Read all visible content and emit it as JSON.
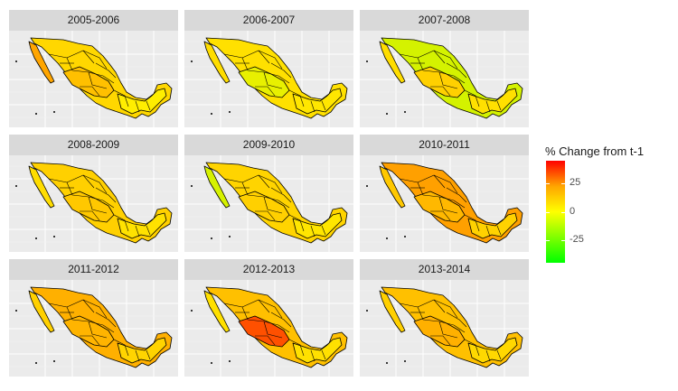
{
  "legend": {
    "title": "% Change from t-1",
    "ticks": [
      {
        "label": "25",
        "value": 25
      },
      {
        "label": "0",
        "value": 0
      },
      {
        "label": "-25",
        "value": -25
      }
    ],
    "range": [
      -45,
      45
    ],
    "colors": {
      "high": "#ff0000",
      "mid": "#ffff00",
      "low": "#00ff00"
    }
  },
  "panels": [
    {
      "label": "2005-2006",
      "fills": {
        "north": "#ffd700",
        "baja": "#ffa500",
        "center": "#ffc000",
        "south": "#ffee00"
      }
    },
    {
      "label": "2006-2007",
      "fills": {
        "north": "#ffe000",
        "baja": "#ffdd00",
        "center": "#e8f000",
        "south": "#ffe600"
      }
    },
    {
      "label": "2007-2008",
      "fills": {
        "north": "#d4f200",
        "baja": "#ffdd00",
        "center": "#ffd000",
        "south": "#ffe000"
      }
    },
    {
      "label": "2008-2009",
      "fills": {
        "north": "#ffd000",
        "baja": "#ffdd00",
        "center": "#ffc800",
        "south": "#ffe200"
      }
    },
    {
      "label": "2009-2010",
      "fills": {
        "north": "#ffd400",
        "baja": "#d6f200",
        "center": "#ffd000",
        "south": "#ffe600"
      }
    },
    {
      "label": "2010-2011",
      "fills": {
        "north": "#ffa000",
        "baja": "#ffc800",
        "center": "#ffb800",
        "south": "#ffd200"
      }
    },
    {
      "label": "2011-2012",
      "fills": {
        "north": "#ffb000",
        "baja": "#ffd000",
        "center": "#ffb400",
        "south": "#ffd400"
      }
    },
    {
      "label": "2012-2013",
      "fills": {
        "north": "#ffc000",
        "baja": "#ffe000",
        "center": "#ff5000",
        "south": "#ffe000"
      }
    },
    {
      "label": "2013-2014",
      "fills": {
        "north": "#ffc000",
        "baja": "#ffd000",
        "center": "#ffb000",
        "south": "#ffd800"
      }
    }
  ]
}
